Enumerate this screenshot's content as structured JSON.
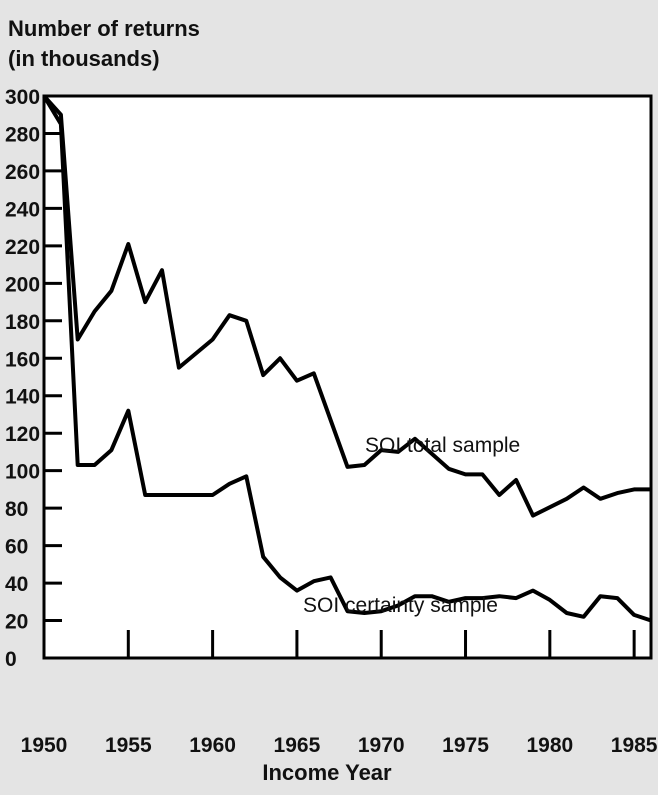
{
  "chart_data": {
    "type": "line",
    "ylabel_lines": [
      "Number of returns",
      "(in thousands)"
    ],
    "xlabel": "Income Year",
    "ylim": [
      0,
      300
    ],
    "xlim": [
      1950,
      1986
    ],
    "y_ticks": [
      0,
      20,
      40,
      60,
      80,
      100,
      120,
      140,
      160,
      180,
      200,
      220,
      240,
      260,
      280,
      300
    ],
    "x_ticks": [
      1950,
      1955,
      1960,
      1965,
      1970,
      1975,
      1980,
      1985
    ],
    "grid": false,
    "series": [
      {
        "name": "SOI total sample",
        "x": [
          1950,
          1951,
          1952,
          1953,
          1954,
          1955,
          1956,
          1957,
          1958,
          1960,
          1961,
          1962,
          1963,
          1964,
          1965,
          1966,
          1968,
          1969,
          1970,
          1971,
          1972,
          1974,
          1975,
          1976,
          1977,
          1978,
          1979,
          1981,
          1982,
          1983,
          1984,
          1985,
          1986
        ],
        "y": [
          300,
          290,
          170,
          185,
          196,
          221,
          190,
          207,
          155,
          170,
          183,
          180,
          151,
          160,
          148,
          152,
          102,
          103,
          111,
          110,
          117,
          101,
          98,
          98,
          87,
          95,
          76,
          85,
          91,
          85,
          88,
          90,
          90
        ]
      },
      {
        "name": "SOI certainty sample",
        "x": [
          1950,
          1951,
          1952,
          1953,
          1954,
          1955,
          1956,
          1957,
          1958,
          1959,
          1960,
          1961,
          1962,
          1963,
          1964,
          1965,
          1966,
          1967,
          1968,
          1969,
          1970,
          1971,
          1972,
          1973,
          1974,
          1975,
          1976,
          1977,
          1978,
          1979,
          1980,
          1981,
          1982,
          1983,
          1984,
          1985,
          1986
        ],
        "y": [
          300,
          285,
          103,
          103,
          111,
          132,
          87,
          87,
          87,
          87,
          87,
          93,
          97,
          54,
          43,
          36,
          41,
          43,
          25,
          24,
          25,
          28,
          33,
          33,
          30,
          32,
          32,
          33,
          32,
          36,
          31,
          24,
          22,
          33,
          32,
          23,
          20
        ]
      }
    ]
  }
}
